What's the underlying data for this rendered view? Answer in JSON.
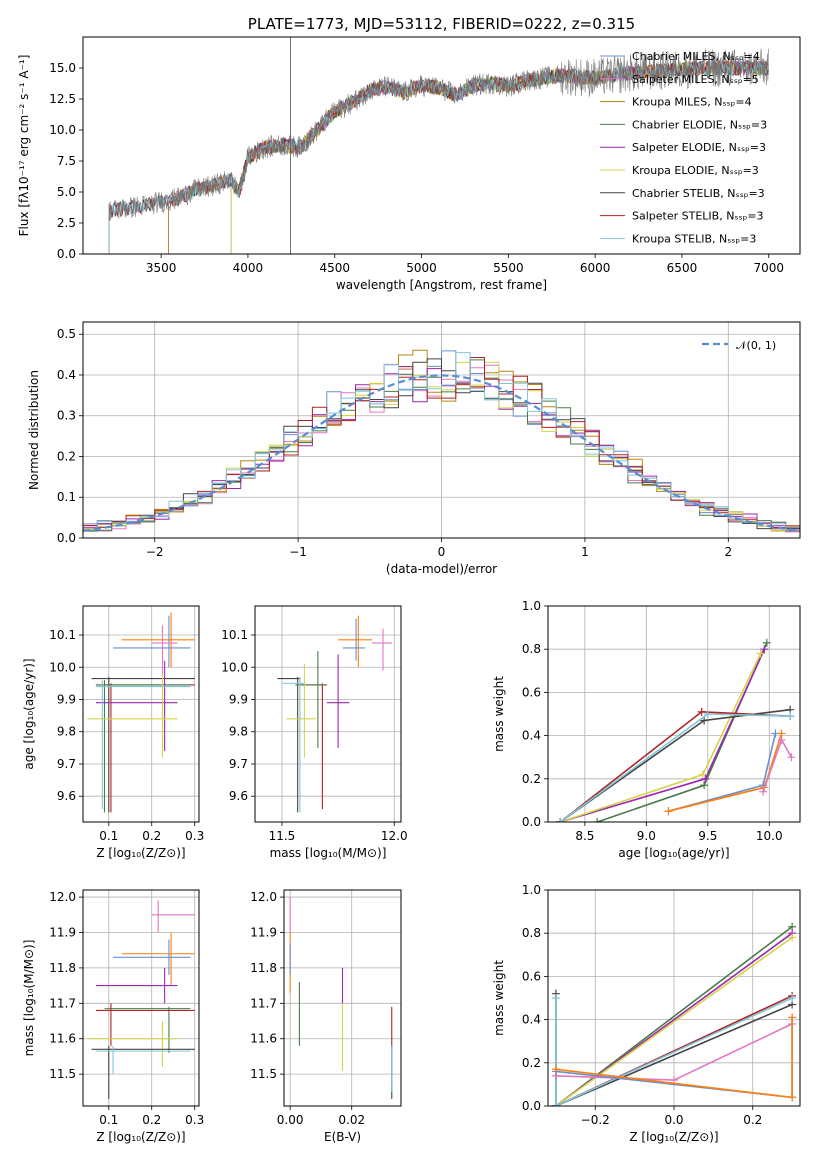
{
  "chart_data": [
    {
      "type": "line",
      "title": "PLATE=1773, MJD=53112, FIBERID=0222, z=0.315",
      "xlabel": "wavelength [Angstrom, rest frame]",
      "ylabel": "Flux [fλ10⁻¹⁷ erg cm⁻² s⁻¹ A⁻¹]",
      "xlim": [
        3050,
        7180
      ],
      "ylim": [
        0,
        17.5
      ],
      "xticks": [
        "3500",
        "4000",
        "4500",
        "5000",
        "5500",
        "6000",
        "6500",
        "7000"
      ],
      "yticks": [
        "0.0",
        "2.5",
        "5.0",
        "7.5",
        "10.0",
        "12.5",
        "15.0"
      ],
      "grid": false,
      "legend_placement": "upper-right",
      "series": [
        {
          "name": "Chabrier MILES, N_SSP=4",
          "color": "#6a8fd0",
          "start": 3540
        },
        {
          "name": "Salpeter MILES, N_SSP=5",
          "color": "#e377c2",
          "start": 3540
        },
        {
          "name": "Kroupa MILES, N_SSP=4",
          "color": "#b8860b",
          "start": 3540
        },
        {
          "name": "Chabrier ELODIE, N_SSP=3",
          "color": "#4a7a4a",
          "start": 3900
        },
        {
          "name": "Salpeter ELODIE, N_SSP=3",
          "color": "#9c27b0",
          "start": 3900
        },
        {
          "name": "Kroupa ELODIE, N_SSP=3",
          "color": "#d4d44a",
          "start": 3900
        },
        {
          "name": "Chabrier STELIB, N_SSP=3",
          "color": "#444444",
          "start": 3200
        },
        {
          "name": "Salpeter STELIB, N_SSP=3",
          "color": "#b22222",
          "start": 3200
        },
        {
          "name": "Kroupa STELIB, N_SSP=3",
          "color": "#7fc7d9",
          "start": 3200
        }
      ],
      "continuum": [
        [
          3200,
          3.5
        ],
        [
          3400,
          3.9
        ],
        [
          3600,
          4.5
        ],
        [
          3700,
          5.2
        ],
        [
          3800,
          5.5
        ],
        [
          3900,
          6.0
        ],
        [
          3950,
          5.0
        ],
        [
          4000,
          7.8
        ],
        [
          4100,
          8.6
        ],
        [
          4200,
          8.8
        ],
        [
          4300,
          8.6
        ],
        [
          4400,
          10.0
        ],
        [
          4500,
          11.5
        ],
        [
          4600,
          12.2
        ],
        [
          4700,
          13.2
        ],
        [
          4800,
          13.5
        ],
        [
          4900,
          13.0
        ],
        [
          5000,
          13.6
        ],
        [
          5100,
          13.4
        ],
        [
          5200,
          12.8
        ],
        [
          5300,
          13.6
        ],
        [
          5400,
          13.8
        ],
        [
          5500,
          13.5
        ],
        [
          5600,
          14.0
        ],
        [
          5800,
          14.4
        ],
        [
          6000,
          14.2
        ],
        [
          6200,
          14.6
        ],
        [
          6400,
          14.8
        ],
        [
          6600,
          15.0
        ],
        [
          6800,
          15.0
        ],
        [
          7000,
          15.0
        ]
      ],
      "emission_spike": {
        "x": 4245,
        "y": 17.5
      }
    },
    {
      "type": "bar",
      "xlabel": "(data-model)/error",
      "ylabel": "Normed distribution",
      "xlim": [
        -2.5,
        2.5
      ],
      "ylim": [
        0,
        0.53
      ],
      "xticks": [
        "−2",
        "−1",
        "0",
        "1",
        "2"
      ],
      "yticks": [
        "0.0",
        "0.1",
        "0.2",
        "0.3",
        "0.4",
        "0.5"
      ],
      "grid": true,
      "legend_placement": "upper-right",
      "legend": "𝒩(0, 1)",
      "bin_width": 0.1,
      "normal": {
        "mean": 0,
        "sigma": 1,
        "color": "#5b8bd0"
      }
    },
    {
      "type": "scatter",
      "xlabel": "Z [log₁₀(Z/Z⊙)]",
      "ylabel": "age  [log₁₀(age/yr)]",
      "xlim": [
        0.04,
        0.31
      ],
      "ylim": [
        9.52,
        10.19
      ],
      "xticks": [
        "0.1",
        "0.2",
        "0.3"
      ],
      "yticks": [
        "9.6",
        "9.7",
        "9.8",
        "9.9",
        "10.0",
        "10.1"
      ],
      "grid": true,
      "points": [
        {
          "x": 0.245,
          "y": 10.085,
          "x0": 0.13,
          "x1": 0.3,
          "y0": 10.0,
          "y1": 10.17,
          "color": "#ff7f0e"
        },
        {
          "x": 0.24,
          "y": 10.06,
          "x0": 0.11,
          "x1": 0.29,
          "y0": 10.0,
          "y1": 10.16,
          "color": "#6a8fd0"
        },
        {
          "x": 0.225,
          "y": 10.075,
          "x0": 0.2,
          "x1": 0.26,
          "y0": 9.97,
          "y1": 10.13,
          "color": "#e377c2"
        },
        {
          "x": 0.1,
          "y": 9.965,
          "x0": 0.06,
          "x1": 0.3,
          "y0": 9.55,
          "y1": 9.97,
          "color": "#444444"
        },
        {
          "x": 0.105,
          "y": 9.945,
          "x0": 0.07,
          "x1": 0.3,
          "y0": 9.55,
          "y1": 9.95,
          "color": "#b22222"
        },
        {
          "x": 0.09,
          "y": 9.945,
          "x0": 0.07,
          "x1": 0.29,
          "y0": 9.55,
          "y1": 9.96,
          "color": "#4a7a4a"
        },
        {
          "x": 0.23,
          "y": 9.89,
          "x0": 0.07,
          "x1": 0.26,
          "y0": 9.74,
          "y1": 10.02,
          "color": "#9c27b0"
        },
        {
          "x": 0.225,
          "y": 9.84,
          "x0": 0.05,
          "x1": 0.26,
          "y0": 9.72,
          "y1": 9.98,
          "color": "#d4d44a"
        },
        {
          "x": 0.085,
          "y": 9.94,
          "x0": 0.07,
          "x1": 0.29,
          "y0": 9.56,
          "y1": 9.96,
          "color": "#7fc7d9"
        }
      ]
    },
    {
      "type": "scatter",
      "xlabel": "mass [log₁₀(M/M⊙)]",
      "ylabel": "",
      "xlim": [
        11.38,
        12.03
      ],
      "ylim": [
        9.52,
        10.19
      ],
      "xticks": [
        "11.5",
        "12.0"
      ],
      "yticks": [
        "9.6",
        "9.7",
        "9.8",
        "9.9",
        "10.0",
        "10.1"
      ],
      "grid": true,
      "points": [
        {
          "x": 11.84,
          "y": 10.085,
          "x0": 11.75,
          "x1": 11.9,
          "y0": 10.0,
          "y1": 10.16,
          "color": "#ff7f0e"
        },
        {
          "x": 11.83,
          "y": 10.06,
          "x0": 11.77,
          "x1": 11.87,
          "y0": 10.02,
          "y1": 10.15,
          "color": "#6a8fd0"
        },
        {
          "x": 11.95,
          "y": 10.075,
          "x0": 11.9,
          "x1": 11.99,
          "y0": 9.99,
          "y1": 10.12,
          "color": "#e377c2"
        },
        {
          "x": 11.57,
          "y": 9.965,
          "x0": 11.48,
          "x1": 11.58,
          "y0": 9.55,
          "y1": 9.97,
          "color": "#444444"
        },
        {
          "x": 11.68,
          "y": 9.945,
          "x0": 11.58,
          "x1": 11.7,
          "y0": 9.56,
          "y1": 9.95,
          "color": "#b22222"
        },
        {
          "x": 11.66,
          "y": 9.945,
          "x0": 11.56,
          "x1": 11.69,
          "y0": 9.75,
          "y1": 10.05,
          "color": "#4a7a4a"
        },
        {
          "x": 11.75,
          "y": 9.89,
          "x0": 11.7,
          "x1": 11.8,
          "y0": 9.75,
          "y1": 10.04,
          "color": "#9c27b0"
        },
        {
          "x": 11.6,
          "y": 9.84,
          "x0": 11.52,
          "x1": 11.65,
          "y0": 9.72,
          "y1": 10.01,
          "color": "#d4d44a"
        },
        {
          "x": 11.58,
          "y": 9.95,
          "x0": 11.5,
          "x1": 11.6,
          "y0": 9.55,
          "y1": 9.97,
          "color": "#7fc7d9"
        }
      ]
    },
    {
      "type": "line",
      "xlabel": "age  [log₁₀(age/yr)]",
      "ylabel": "mass weight",
      "xlim": [
        8.2,
        10.25
      ],
      "ylim": [
        0,
        1.0
      ],
      "xticks": [
        "8.5",
        "9.0",
        "9.5",
        "10.0"
      ],
      "yticks": [
        "0.0",
        "0.2",
        "0.4",
        "0.6",
        "0.8",
        "1.0"
      ],
      "grid": true,
      "series": [
        {
          "color": "#4a7a4a",
          "points": [
            [
              8.6,
              0.0
            ],
            [
              9.47,
              0.17
            ],
            [
              9.98,
              0.83
            ]
          ]
        },
        {
          "color": "#9c27b0",
          "points": [
            [
              8.3,
              0.0
            ],
            [
              9.48,
              0.2
            ],
            [
              9.96,
              0.8
            ]
          ]
        },
        {
          "color": "#d4d44a",
          "points": [
            [
              8.3,
              0.0
            ],
            [
              9.46,
              0.22
            ],
            [
              9.93,
              0.78
            ]
          ]
        },
        {
          "color": "#444444",
          "points": [
            [
              8.3,
              0.0
            ],
            [
              9.47,
              0.47
            ],
            [
              10.17,
              0.52
            ]
          ]
        },
        {
          "color": "#b22222",
          "points": [
            [
              8.3,
              0.0
            ],
            [
              9.45,
              0.51
            ],
            [
              10.17,
              0.49
            ]
          ]
        },
        {
          "color": "#7fc7d9",
          "points": [
            [
              8.3,
              0.0
            ],
            [
              9.5,
              0.5
            ],
            [
              10.17,
              0.49
            ]
          ]
        },
        {
          "color": "#6a8fd0",
          "points": [
            [
              9.18,
              0.05
            ],
            [
              9.95,
              0.17
            ],
            [
              10.05,
              0.41
            ]
          ]
        },
        {
          "color": "#ff7f0e",
          "points": [
            [
              9.18,
              0.05
            ],
            [
              9.96,
              0.16
            ],
            [
              10.1,
              0.41
            ]
          ]
        },
        {
          "color": "#e377c2",
          "points": [
            [
              9.95,
              0.14
            ],
            [
              10.1,
              0.38
            ],
            [
              10.18,
              0.3
            ]
          ]
        }
      ]
    },
    {
      "type": "scatter",
      "xlabel": "Z [log₁₀(Z/Z⊙)]",
      "ylabel": "mass [log₁₀(M/M⊙)]",
      "xlim": [
        0.04,
        0.31
      ],
      "ylim": [
        11.41,
        12.02
      ],
      "xticks": [
        "0.1",
        "0.2",
        "0.3"
      ],
      "yticks": [
        "11.5",
        "11.6",
        "11.7",
        "11.8",
        "11.9",
        "12.0"
      ],
      "grid": true,
      "points": [
        {
          "x": 0.215,
          "y": 11.95,
          "x0": 0.2,
          "x1": 0.3,
          "y0": 11.9,
          "y1": 11.99,
          "color": "#e377c2"
        },
        {
          "x": 0.245,
          "y": 11.84,
          "x0": 0.13,
          "x1": 0.3,
          "y0": 11.75,
          "y1": 11.9,
          "color": "#ff7f0e"
        },
        {
          "x": 0.24,
          "y": 11.83,
          "x0": 0.11,
          "x1": 0.29,
          "y0": 11.78,
          "y1": 11.88,
          "color": "#6a8fd0"
        },
        {
          "x": 0.23,
          "y": 11.75,
          "x0": 0.07,
          "x1": 0.26,
          "y0": 11.7,
          "y1": 11.8,
          "color": "#9c27b0"
        },
        {
          "x": 0.24,
          "y": 11.685,
          "x0": 0.09,
          "x1": 0.29,
          "y0": 11.56,
          "y1": 11.69,
          "color": "#4a7a4a"
        },
        {
          "x": 0.105,
          "y": 11.68,
          "x0": 0.07,
          "x1": 0.3,
          "y0": 11.58,
          "y1": 11.7,
          "color": "#b22222"
        },
        {
          "x": 0.225,
          "y": 11.6,
          "x0": 0.05,
          "x1": 0.26,
          "y0": 11.52,
          "y1": 11.65,
          "color": "#d4d44a"
        },
        {
          "x": 0.1,
          "y": 11.57,
          "x0": 0.06,
          "x1": 0.3,
          "y0": 11.43,
          "y1": 11.58,
          "color": "#444444"
        },
        {
          "x": 0.11,
          "y": 11.565,
          "x0": 0.07,
          "x1": 0.29,
          "y0": 11.5,
          "y1": 11.58,
          "color": "#7fc7d9"
        }
      ]
    },
    {
      "type": "scatter",
      "xlabel": "E(B-V)",
      "ylabel": "",
      "xlim": [
        -0.002,
        0.036
      ],
      "ylim": [
        11.41,
        12.02
      ],
      "xticks": [
        "0.00",
        "0.02"
      ],
      "yticks": [
        "11.5",
        "11.6",
        "11.7",
        "11.8",
        "11.9",
        "12.0"
      ],
      "grid": true,
      "points": [
        {
          "x": 0.0,
          "y": 11.95,
          "y0": 11.9,
          "y1": 12.0,
          "color": "#e377c2"
        },
        {
          "x": 0.0,
          "y": 11.84,
          "y0": 11.73,
          "y1": 11.9,
          "color": "#ff7f0e"
        },
        {
          "x": 0.0,
          "y": 11.83,
          "y0": 11.78,
          "y1": 11.87,
          "color": "#6a8fd0"
        },
        {
          "x": 0.017,
          "y": 11.75,
          "y0": 11.7,
          "y1": 11.8,
          "color": "#9c27b0"
        },
        {
          "x": 0.003,
          "y": 11.685,
          "y0": 11.58,
          "y1": 11.76,
          "color": "#4a7a4a"
        },
        {
          "x": 0.033,
          "y": 11.68,
          "y0": 11.58,
          "y1": 11.69,
          "color": "#b22222"
        },
        {
          "x": 0.017,
          "y": 11.6,
          "y0": 11.51,
          "y1": 11.7,
          "color": "#d4d44a"
        },
        {
          "x": 0.033,
          "y": 11.57,
          "y0": 11.43,
          "y1": 11.58,
          "color": "#444444"
        },
        {
          "x": 0.033,
          "y": 11.565,
          "y0": 11.45,
          "y1": 11.58,
          "color": "#7fc7d9"
        }
      ]
    },
    {
      "type": "line",
      "xlabel": "Z [log₁₀(Z/Z⊙)]",
      "ylabel": "mass weight",
      "xlim": [
        -0.32,
        0.32
      ],
      "ylim": [
        0,
        1.0
      ],
      "xticks": [
        "−0.2",
        "0.0",
        "0.2"
      ],
      "yticks": [
        "0.0",
        "0.2",
        "0.4",
        "0.6",
        "0.8",
        "1.0"
      ],
      "grid": true,
      "series": [
        {
          "color": "#4a7a4a",
          "points": [
            [
              -0.3,
              0.0
            ],
            [
              0.3,
              0.83
            ]
          ]
        },
        {
          "color": "#9c27b0",
          "points": [
            [
              -0.3,
              0.0
            ],
            [
              0.3,
              0.8
            ]
          ]
        },
        {
          "color": "#d4d44a",
          "points": [
            [
              -0.3,
              0.0
            ],
            [
              0.3,
              0.78
            ]
          ]
        },
        {
          "color": "#444444",
          "points": [
            [
              -0.3,
              0.52
            ],
            [
              -0.3,
              0.0
            ],
            [
              0.3,
              0.47
            ]
          ]
        },
        {
          "color": "#b22222",
          "points": [
            [
              -0.3,
              0.0
            ],
            [
              0.3,
              0.51
            ]
          ]
        },
        {
          "color": "#7fc7d9",
          "points": [
            [
              -0.3,
              0.5
            ],
            [
              -0.3,
              0.0
            ],
            [
              0.3,
              0.5
            ]
          ]
        },
        {
          "color": "#e377c2",
          "points": [
            [
              -0.3,
              0.14
            ],
            [
              0.0,
              0.12
            ],
            [
              0.3,
              0.38
            ]
          ]
        },
        {
          "color": "#6a8fd0",
          "points": [
            [
              -0.3,
              0.16
            ],
            [
              0.3,
              0.04
            ],
            [
              0.3,
              0.41
            ]
          ]
        },
        {
          "color": "#ff7f0e",
          "points": [
            [
              -0.3,
              0.17
            ],
            [
              0.3,
              0.04
            ],
            [
              0.3,
              0.41
            ]
          ]
        }
      ]
    }
  ]
}
